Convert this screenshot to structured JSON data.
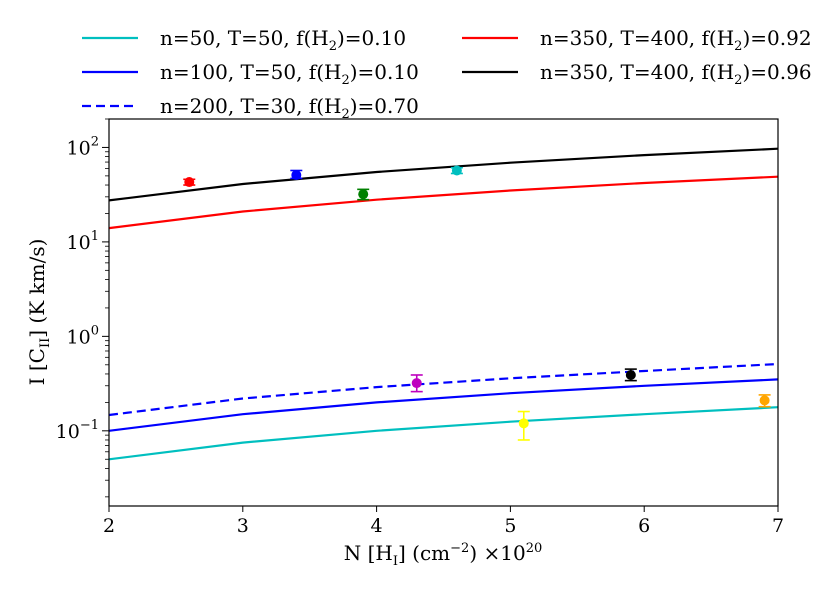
{
  "chart_data": {
    "type": "line",
    "title": "",
    "xlabel": "N [H_I] (cm^-2) ×10^20",
    "xlabel_parts": {
      "pre": "N [H",
      "sub": "I",
      "mid": "] (cm",
      "sup": "−2",
      "post": ") ×10",
      "exp": "20"
    },
    "ylabel": "I [C_II] (K km/s)",
    "ylabel_parts": {
      "pre": "I [C",
      "sub": "II",
      "post": "] (K km/s)"
    },
    "xlim": [
      2,
      7
    ],
    "ylim": [
      0.016,
      200
    ],
    "yscale": "log",
    "x_ticks": [
      "2",
      "3",
      "4",
      "5",
      "6",
      "7"
    ],
    "y_ticks": [
      {
        "value": 0.1,
        "base": "10",
        "exp": "−1"
      },
      {
        "value": 1,
        "base": "10",
        "exp": "0"
      },
      {
        "value": 10,
        "base": "10",
        "exp": "1"
      },
      {
        "value": 100,
        "base": "10",
        "exp": "2"
      }
    ],
    "legend_placement": "top, two columns, outside axes",
    "x": [
      2,
      3,
      4,
      5,
      6,
      7
    ],
    "series": [
      {
        "name_pre": "n=50, T=50, f(H",
        "name_sub": "2",
        "name_post": ")=0.10",
        "color": "#00bfbf",
        "dash": "solid",
        "values": [
          0.05,
          0.075,
          0.1,
          0.125,
          0.15,
          0.178
        ]
      },
      {
        "name_pre": "n=100, T=50, f(H",
        "name_sub": "2",
        "name_post": ")=0.10",
        "color": "#0000ff",
        "dash": "solid",
        "values": [
          0.1,
          0.15,
          0.2,
          0.25,
          0.3,
          0.35
        ]
      },
      {
        "name_pre": "n=200, T=30, f(H",
        "name_sub": "2",
        "name_post": ")=0.70",
        "color": "#0000ff",
        "dash": "dashed",
        "values": [
          0.147,
          0.22,
          0.29,
          0.36,
          0.43,
          0.51
        ]
      },
      {
        "name_pre": "n=350, T=400, f(H",
        "name_sub": "2",
        "name_post": ")=0.92",
        "color": "#ff0000",
        "dash": "solid",
        "values": [
          14,
          21,
          28,
          35,
          42,
          49
        ]
      },
      {
        "name_pre": "n=350, T=400, f(H",
        "name_sub": "2",
        "name_post": ")=0.96",
        "color": "#000000",
        "dash": "solid",
        "values": [
          27.5,
          41,
          55,
          69,
          83,
          97
        ]
      }
    ],
    "points": [
      {
        "x": 2.6,
        "y": 43,
        "err_low": 3,
        "err_high": 3,
        "color": "#ff0000"
      },
      {
        "x": 3.4,
        "y": 51,
        "err_low": 4,
        "err_high": 6,
        "color": "#0000ff"
      },
      {
        "x": 3.9,
        "y": 32,
        "err_low": 4,
        "err_high": 4,
        "color": "#008000"
      },
      {
        "x": 4.6,
        "y": 57,
        "err_low": 4,
        "err_high": 4,
        "color": "#00bfbf"
      },
      {
        "x": 4.3,
        "y": 0.32,
        "err_low": 0.06,
        "err_high": 0.07,
        "color": "#bf00bf"
      },
      {
        "x": 5.1,
        "y": 0.12,
        "err_low": 0.04,
        "err_high": 0.04,
        "color": "#ffff00"
      },
      {
        "x": 5.9,
        "y": 0.39,
        "err_low": 0.05,
        "err_high": 0.06,
        "color": "#000000"
      },
      {
        "x": 6.9,
        "y": 0.21,
        "err_low": 0.03,
        "err_high": 0.03,
        "color": "#ffa500"
      }
    ]
  }
}
